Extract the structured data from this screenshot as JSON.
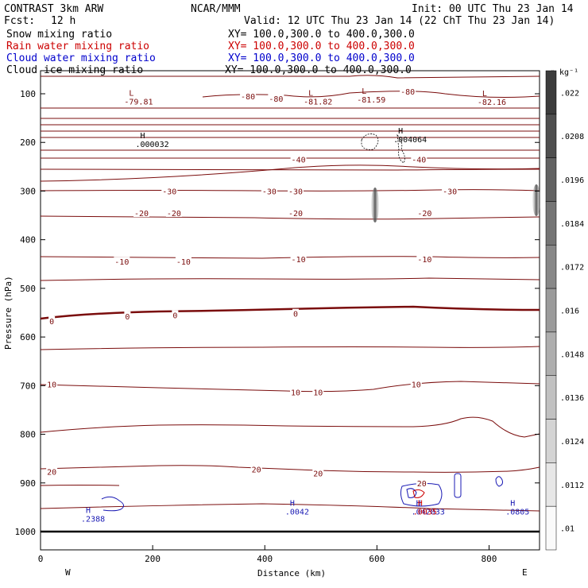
{
  "header": {
    "title": "CONTRAST  3km ARW",
    "org": "NCAR/MMM",
    "init": "Init: 00 UTC Thu 23 Jan 14",
    "fcst_label": "Fcst:",
    "fcst_value": "12 h",
    "valid": "Valid: 12 UTC Thu 23 Jan 14 (22 ChT Thu 23 Jan 14)"
  },
  "legend": [
    {
      "name": "Snow mixing ratio",
      "xy": "XY= 100.0,300.0 to 400.0,300.0",
      "color": "#000000"
    },
    {
      "name": "Rain water mixing ratio",
      "xy": "XY= 100.0,300.0 to 400.0,300.0",
      "color": "#cc0000"
    },
    {
      "name": "Cloud water mixing ratio",
      "xy": "XY= 100.0,300.0 to 400.0,300.0",
      "color": "#0000cc"
    },
    {
      "name": "Cloud ice mixing ratio",
      "xy": "XY= 100.0,300.0 to 400.0,300.0",
      "color": "#000000"
    }
  ],
  "colors": {
    "temp": "#7a0c0c",
    "cloud": "#1a1ab4",
    "rain": "#cc0000",
    "snow": "#000000"
  },
  "colorbar": {
    "unit": "g kg⁻¹",
    "labels": [
      ".022",
      ".0208",
      ".0196",
      ".0184",
      ".0172",
      ".016",
      ".0148",
      ".0136",
      ".0124",
      ".0112",
      ".01"
    ]
  },
  "chart_data": {
    "type": "cross-section contour",
    "xlabel": "Distance (km)",
    "ylabel": "Pressure (hPa)",
    "xlim": [
      0,
      890
    ],
    "ylim": [
      1050,
      50
    ],
    "x_ticks": [
      "0",
      "200",
      "400",
      "600",
      "800"
    ],
    "x_tick_values": [
      0,
      200,
      400,
      600,
      800
    ],
    "y_ticks": [
      "100",
      "200",
      "300",
      "400",
      "500",
      "600",
      "700",
      "800",
      "900",
      "1000"
    ],
    "y_tick_values": [
      100,
      200,
      300,
      400,
      500,
      600,
      700,
      800,
      900,
      1000
    ],
    "west_label": "W",
    "east_label": "E",
    "temperature_labels": [
      {
        "text": "-80",
        "x": 370,
        "p": 105
      },
      {
        "text": "-80",
        "x": 420,
        "p": 110
      },
      {
        "text": "-80",
        "x": 655,
        "p": 95
      },
      {
        "text": "-40",
        "x": 460,
        "p": 235
      },
      {
        "text": "-40",
        "x": 675,
        "p": 235
      },
      {
        "text": "-30",
        "x": 230,
        "p": 300
      },
      {
        "text": "-30",
        "x": 408,
        "p": 300
      },
      {
        "text": "-30",
        "x": 455,
        "p": 300
      },
      {
        "text": "-30",
        "x": 730,
        "p": 300
      },
      {
        "text": "-20",
        "x": 180,
        "p": 345
      },
      {
        "text": "-20",
        "x": 238,
        "p": 345
      },
      {
        "text": "-20",
        "x": 455,
        "p": 345
      },
      {
        "text": "-20",
        "x": 685,
        "p": 345
      },
      {
        "text": "-10",
        "x": 145,
        "p": 445
      },
      {
        "text": "-10",
        "x": 255,
        "p": 445
      },
      {
        "text": "-10",
        "x": 460,
        "p": 440
      },
      {
        "text": "-10",
        "x": 685,
        "p": 440
      },
      {
        "text": "0",
        "x": 20,
        "p": 567
      },
      {
        "text": "0",
        "x": 155,
        "p": 557
      },
      {
        "text": "0",
        "x": 240,
        "p": 555
      },
      {
        "text": "0",
        "x": 455,
        "p": 552
      },
      {
        "text": "10",
        "x": 20,
        "p": 697
      },
      {
        "text": "10",
        "x": 455,
        "p": 713
      },
      {
        "text": "10",
        "x": 495,
        "p": 713
      },
      {
        "text": "10",
        "x": 670,
        "p": 697
      },
      {
        "text": "20",
        "x": 20,
        "p": 877
      },
      {
        "text": "20",
        "x": 385,
        "p": 872
      },
      {
        "text": "20",
        "x": 495,
        "p": 880
      },
      {
        "text": "20",
        "x": 680,
        "p": 900
      }
    ],
    "extrema": [
      {
        "kind": "L",
        "value": "-79.81",
        "x": 155,
        "p": 107,
        "color": "temp"
      },
      {
        "kind": "L",
        "value": "-81.82",
        "x": 475,
        "p": 107,
        "color": "temp"
      },
      {
        "kind": "L",
        "value": "-81.59",
        "x": 570,
        "p": 103,
        "color": "temp"
      },
      {
        "kind": "L",
        "value": "-82.16",
        "x": 785,
        "p": 108,
        "color": "temp"
      },
      {
        "kind": "H",
        "value": ".000032",
        "x": 175,
        "p": 195,
        "color": "snow"
      },
      {
        "kind": "H",
        "value": ".004064",
        "x": 635,
        "p": 185,
        "color": "snow"
      },
      {
        "kind": "H",
        "value": ".2388",
        "x": 78,
        "p": 965,
        "color": "cloud"
      },
      {
        "kind": "H",
        "value": ".0042",
        "x": 442,
        "p": 950,
        "color": "cloud"
      },
      {
        "kind": "H",
        "value": ".0805",
        "x": 835,
        "p": 950,
        "color": "cloud"
      },
      {
        "kind": "H",
        "value": ".042033",
        "x": 667,
        "p": 950,
        "color": "cloud"
      },
      {
        "kind": "H",
        "value": ".0035",
        "x": 670,
        "p": 950,
        "color": "rain"
      }
    ],
    "temperature_contour_levels_degC": [
      -80,
      -70,
      -60,
      -50,
      -40,
      -30,
      -20,
      -10,
      0,
      10,
      20,
      30
    ]
  }
}
